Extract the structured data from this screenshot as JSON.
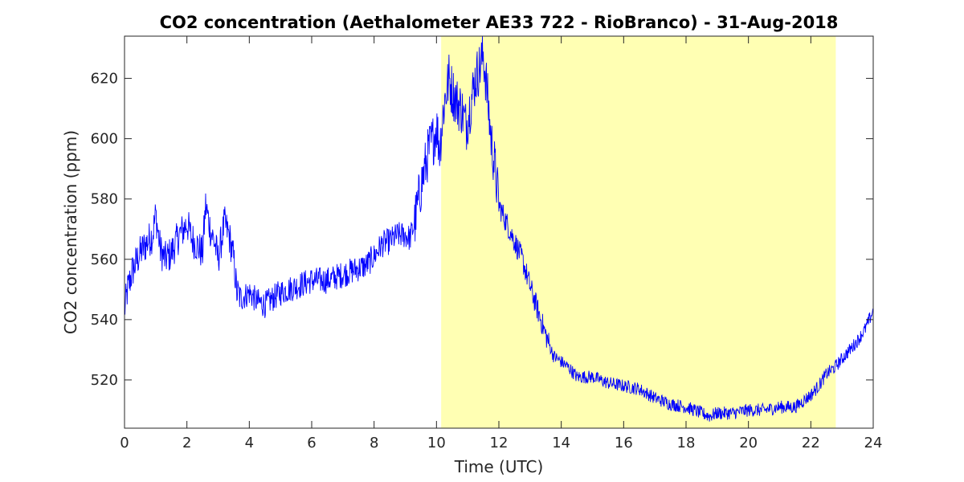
{
  "chart_data": {
    "type": "line",
    "title": "CO2 concentration (Aethalometer AE33 722 - RioBranco) - 31-Aug-2018",
    "xlabel": "Time (UTC)",
    "ylabel": "CO2 concentration (ppm)",
    "xlim": [
      0,
      24
    ],
    "ylim": [
      504,
      634
    ],
    "xticks": [
      0,
      2,
      4,
      6,
      8,
      10,
      12,
      14,
      16,
      18,
      20,
      22,
      24
    ],
    "yticks": [
      520,
      540,
      560,
      580,
      600,
      620
    ],
    "grid": false,
    "shaded_region": {
      "x_start": 10.15,
      "x_end": 22.8,
      "color": "#ffffb3"
    },
    "series": [
      {
        "color": "#0000ff",
        "x": [
          0.0,
          0.1,
          0.25,
          0.5,
          0.75,
          0.9,
          1.0,
          1.15,
          1.3,
          1.5,
          1.75,
          1.9,
          2.0,
          2.15,
          2.3,
          2.5,
          2.6,
          2.75,
          2.9,
          3.0,
          3.2,
          3.35,
          3.5,
          3.6,
          3.75,
          4.0,
          4.25,
          4.5,
          4.75,
          5.0,
          5.5,
          6.0,
          6.5,
          7.0,
          7.5,
          7.75,
          8.0,
          8.25,
          8.5,
          8.75,
          9.0,
          9.15,
          9.3,
          9.5,
          9.75,
          9.9,
          10.0,
          10.1,
          10.25,
          10.4,
          10.5,
          10.65,
          10.8,
          10.95,
          11.1,
          11.25,
          11.4,
          11.5,
          11.6,
          11.75,
          11.9,
          12.0,
          12.25,
          12.5,
          12.75,
          13.0,
          13.25,
          13.5,
          13.75,
          14.0,
          14.25,
          14.5,
          15.0,
          15.5,
          16.0,
          16.5,
          17.0,
          17.5,
          18.0,
          18.5,
          18.75,
          19.0,
          19.5,
          20.0,
          20.5,
          21.0,
          21.5,
          22.0,
          22.25,
          22.5,
          22.75,
          23.0,
          23.25,
          23.5,
          23.75,
          24.0
        ],
        "y": [
          543,
          550,
          556,
          562,
          566,
          568,
          575,
          563,
          560,
          562,
          568,
          570,
          572,
          567,
          565,
          562,
          578,
          570,
          565,
          560,
          572,
          568,
          560,
          549,
          547,
          549,
          546,
          545,
          547,
          549,
          551,
          553,
          553,
          555,
          557,
          558,
          561,
          565,
          566,
          568,
          568,
          567,
          572,
          584,
          596,
          600,
          604,
          597,
          612,
          620,
          616,
          612,
          610,
          604,
          612,
          620,
          624,
          628,
          618,
          600,
          588,
          578,
          572,
          566,
          560,
          551,
          543,
          535,
          528,
          526,
          524,
          521,
          521,
          519,
          518,
          517,
          514,
          512,
          511,
          509,
          508,
          509,
          509,
          510,
          510,
          511,
          511,
          515,
          518,
          522,
          524,
          527,
          530,
          533,
          537,
          543
        ]
      }
    ]
  }
}
